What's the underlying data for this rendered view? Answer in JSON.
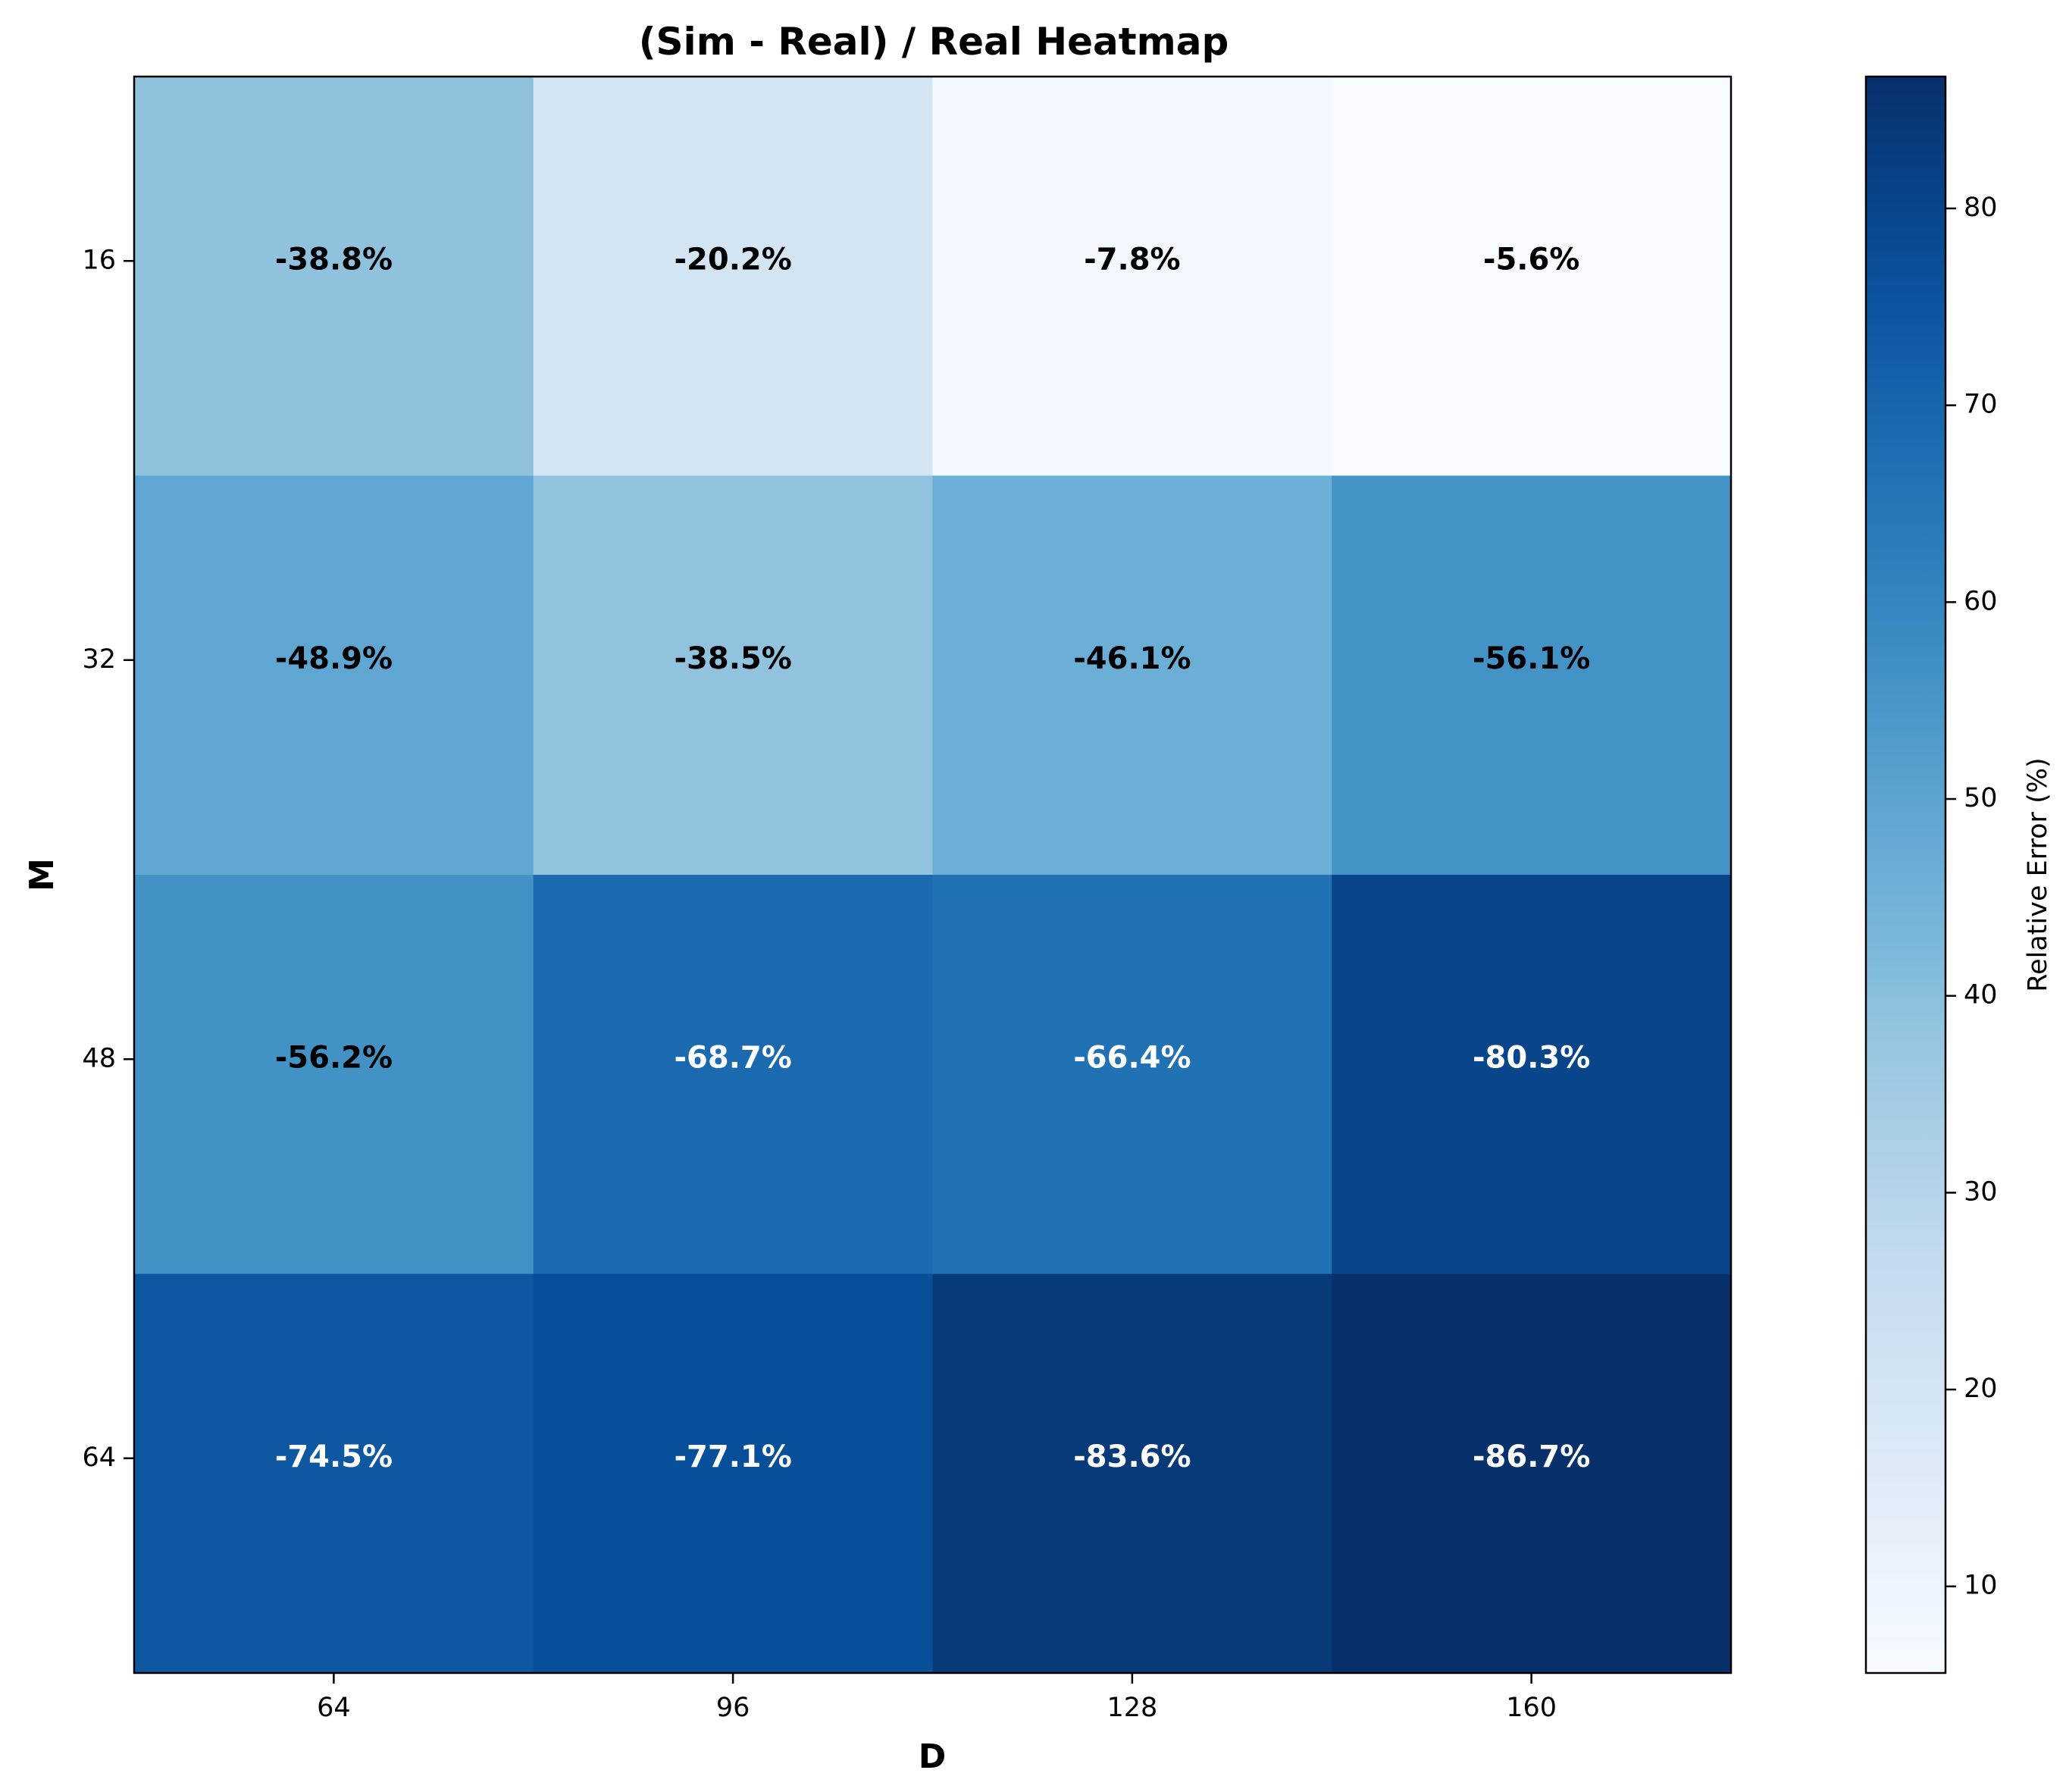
{
  "chart_data": {
    "type": "heatmap",
    "title": "(Sim - Real) / Real Heatmap",
    "xlabel": "D",
    "ylabel": "M",
    "x_categories": [
      "64",
      "96",
      "128",
      "160"
    ],
    "y_categories": [
      "16",
      "32",
      "48",
      "64"
    ],
    "values": [
      [
        -38.8,
        -20.2,
        -7.8,
        -5.6
      ],
      [
        -48.9,
        -38.5,
        -46.1,
        -56.1
      ],
      [
        -56.2,
        -68.7,
        -66.4,
        -80.3
      ],
      [
        -74.5,
        -77.1,
        -83.6,
        -86.7
      ]
    ],
    "cell_labels": [
      [
        "-38.8%",
        "-20.2%",
        "-7.8%",
        "-5.6%"
      ],
      [
        "-48.9%",
        "-38.5%",
        "-46.1%",
        "-56.1%"
      ],
      [
        "-56.2%",
        "-68.7%",
        "-66.4%",
        "-80.3%"
      ],
      [
        "-74.5%",
        "-77.1%",
        "-83.6%",
        "-86.7%"
      ]
    ],
    "colorbar": {
      "label": "Relative Error (%)",
      "range": [
        5.6,
        86.7
      ],
      "ticks": [
        "10",
        "20",
        "30",
        "40",
        "50",
        "60",
        "70",
        "80"
      ],
      "colormap": "Blues"
    },
    "grid": false
  }
}
